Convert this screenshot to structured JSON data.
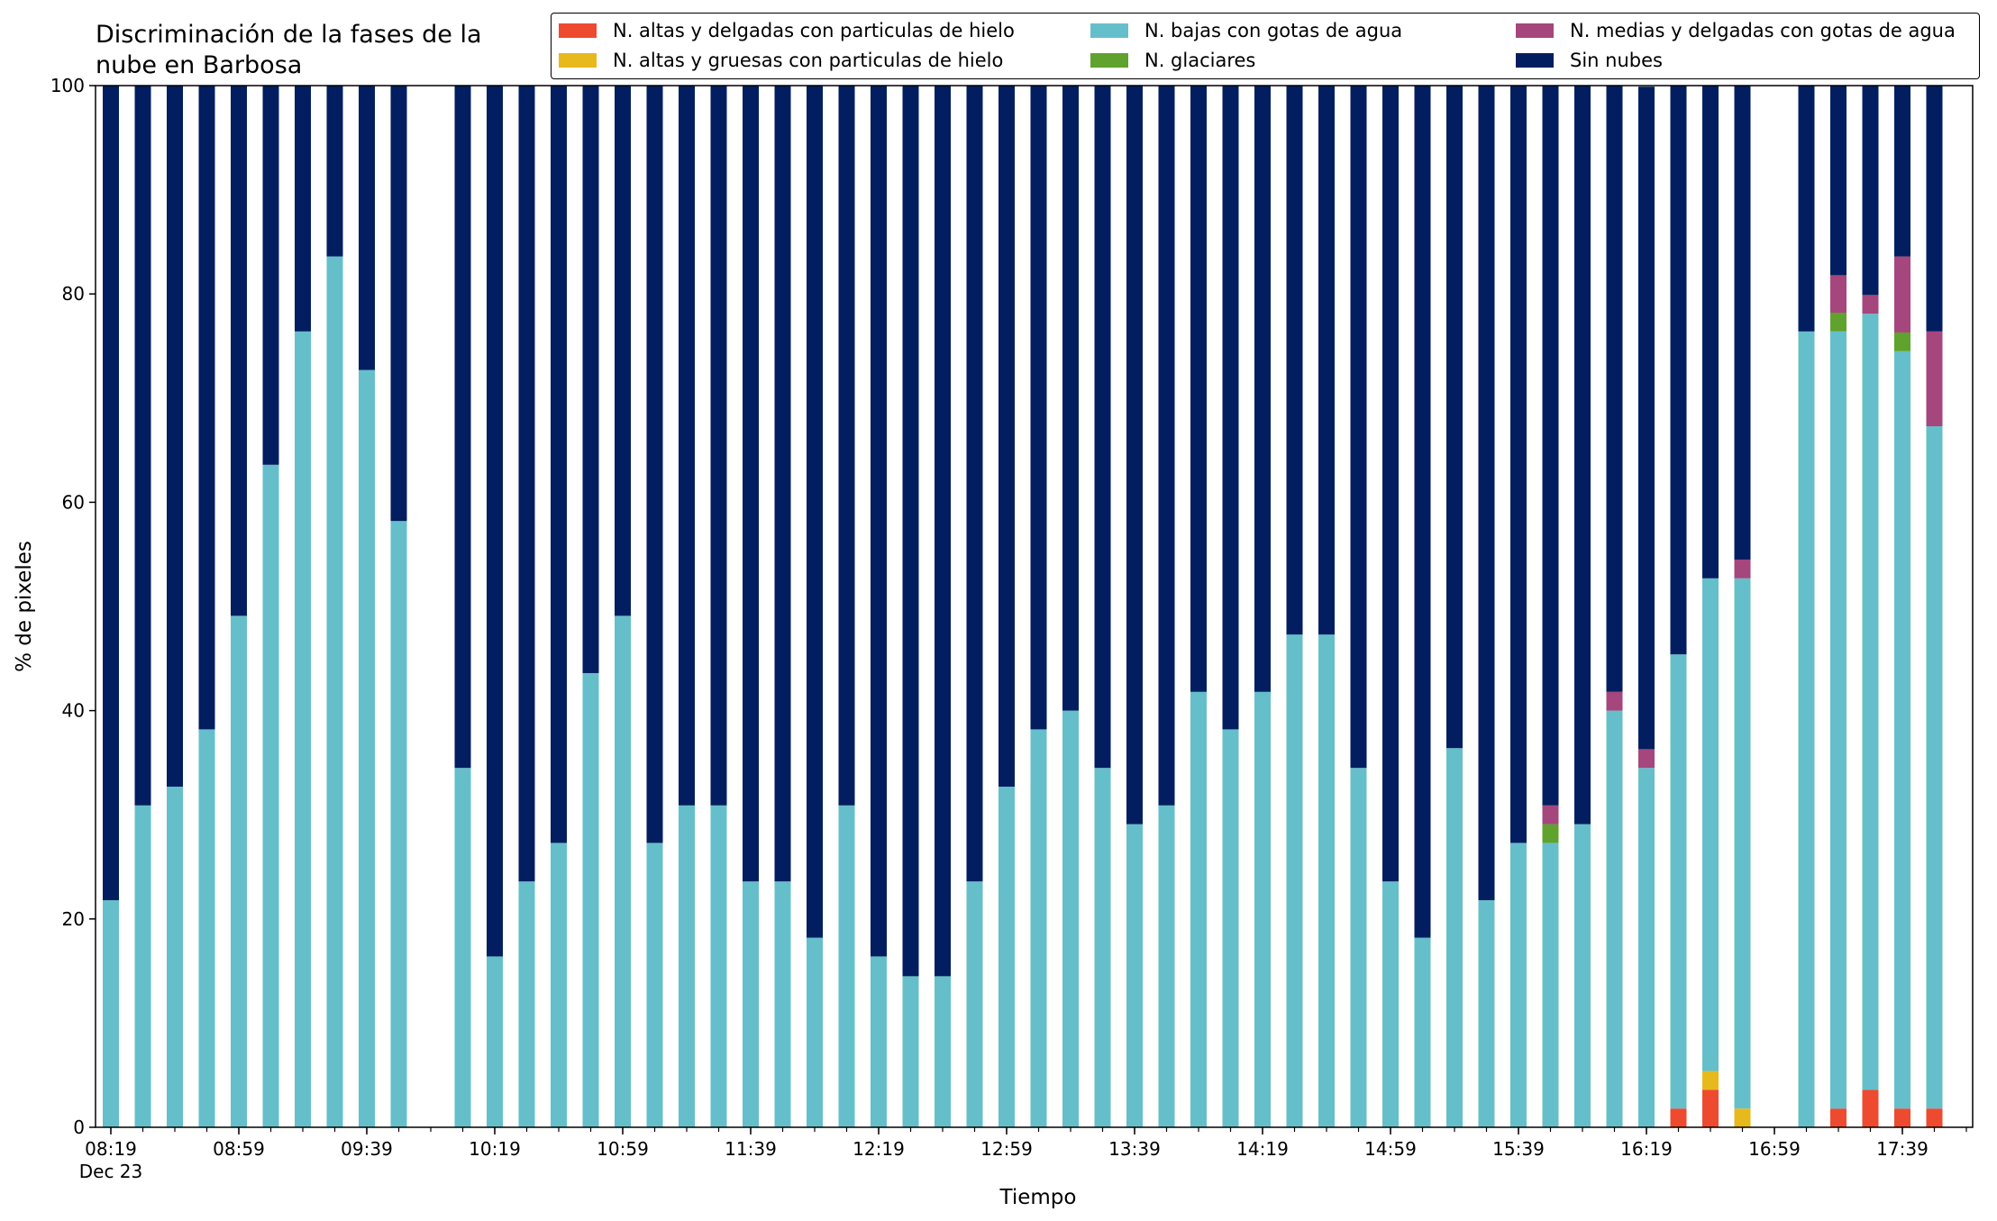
{
  "chart_data": {
    "type": "bar",
    "stacked": true,
    "title": "Discriminación de la fases de la\nnube en Barbosa",
    "xlabel": "Tiempo",
    "ylabel": "% de pixeles",
    "ylim": [
      0,
      100
    ],
    "yticks": [
      0,
      20,
      40,
      60,
      80,
      100
    ],
    "date_label": "Dec 23",
    "x_start": "08:19",
    "x_step_minutes": 10,
    "x_end": "17:59",
    "xtick_labels": [
      "08:19",
      "08:59",
      "09:39",
      "10:19",
      "10:59",
      "11:39",
      "12:19",
      "12:59",
      "13:39",
      "14:19",
      "14:59",
      "15:39",
      "16:19",
      "16:59",
      "17:39"
    ],
    "legend_position": "top-right",
    "grid": false,
    "x": [
      "08:19",
      "08:29",
      "08:39",
      "08:49",
      "08:59",
      "09:09",
      "09:19",
      "09:29",
      "09:39",
      "09:49",
      "09:59",
      "10:09",
      "10:19",
      "10:29",
      "10:39",
      "10:49",
      "10:59",
      "11:09",
      "11:19",
      "11:29",
      "11:39",
      "11:49",
      "11:59",
      "12:09",
      "12:19",
      "12:29",
      "12:39",
      "12:49",
      "12:59",
      "13:09",
      "13:19",
      "13:29",
      "13:39",
      "13:49",
      "13:59",
      "14:09",
      "14:19",
      "14:29",
      "14:39",
      "14:49",
      "14:59",
      "15:09",
      "15:19",
      "15:29",
      "15:39",
      "15:49",
      "15:59",
      "16:09",
      "16:19",
      "16:29",
      "16:39",
      "16:49",
      "16:59",
      "17:09",
      "17:19",
      "17:29",
      "17:39",
      "17:49"
    ],
    "series": [
      {
        "name": "N. altas y delgadas con particulas de hielo",
        "color": "#ee4a2f",
        "values": [
          0,
          0,
          0,
          0,
          0,
          0,
          0,
          0,
          0,
          0,
          null,
          0,
          0,
          0,
          0,
          0,
          0,
          0,
          0,
          0,
          0,
          0,
          0,
          0,
          0,
          0,
          0,
          0,
          0,
          0,
          0,
          0,
          0,
          0,
          0,
          0,
          0,
          0,
          0,
          0,
          0,
          0,
          0,
          0,
          0,
          0,
          0,
          0,
          0,
          1.8,
          3.6,
          0,
          null,
          0,
          1.8,
          3.6,
          1.8,
          1.8
        ]
      },
      {
        "name": "N. altas y gruesas con particulas de hielo",
        "color": "#e8b91c",
        "values": [
          0,
          0,
          0,
          0,
          0,
          0,
          0,
          0,
          0,
          0,
          null,
          0,
          0,
          0,
          0,
          0,
          0,
          0,
          0,
          0,
          0,
          0,
          0,
          0,
          0,
          0,
          0,
          0,
          0,
          0,
          0,
          0,
          0,
          0,
          0,
          0,
          0,
          0,
          0,
          0,
          0,
          0,
          0,
          0,
          0,
          0,
          0,
          0,
          0,
          0,
          1.8,
          1.8,
          null,
          0,
          0,
          0,
          0,
          0
        ]
      },
      {
        "name": "N. bajas con gotas de agua",
        "color": "#65bfca",
        "values": [
          21.8,
          30.9,
          32.7,
          38.2,
          49.1,
          63.6,
          76.4,
          83.6,
          72.7,
          58.2,
          null,
          34.5,
          16.4,
          23.6,
          27.3,
          43.6,
          49.1,
          27.3,
          30.9,
          30.9,
          23.6,
          23.6,
          18.2,
          30.9,
          16.4,
          14.5,
          14.5,
          23.6,
          32.7,
          38.2,
          40.0,
          34.5,
          29.1,
          30.9,
          41.8,
          38.2,
          41.8,
          47.3,
          47.3,
          34.5,
          23.6,
          18.2,
          36.4,
          21.8,
          27.3,
          27.3,
          29.1,
          40.0,
          34.5,
          43.6,
          47.3,
          50.9,
          null,
          76.4,
          74.6,
          74.5,
          72.7,
          65.5
        ]
      },
      {
        "name": "N. glaciares",
        "color": "#5fa22e",
        "values": [
          0,
          0,
          0,
          0,
          0,
          0,
          0,
          0,
          0,
          0,
          null,
          0,
          0,
          0,
          0,
          0,
          0,
          0,
          0,
          0,
          0,
          0,
          0,
          0,
          0,
          0,
          0,
          0,
          0,
          0,
          0,
          0,
          0,
          0,
          0,
          0,
          0,
          0,
          0,
          0,
          0,
          0,
          0,
          0,
          0,
          1.8,
          0,
          0,
          0,
          0,
          0,
          0,
          null,
          0,
          1.8,
          0,
          1.8,
          0
        ]
      },
      {
        "name": "N. medias y delgadas con gotas de agua",
        "color": "#a5467c",
        "values": [
          0,
          0,
          0,
          0,
          0,
          0,
          0,
          0,
          0,
          0,
          null,
          0,
          0,
          0,
          0,
          0,
          0,
          0,
          0,
          0,
          0,
          0,
          0,
          0,
          0,
          0,
          0,
          0,
          0,
          0,
          0,
          0,
          0,
          0,
          0,
          0,
          0,
          0,
          0,
          0,
          0,
          0,
          0,
          0,
          0,
          1.8,
          0,
          1.8,
          1.8,
          0,
          0,
          1.8,
          null,
          0,
          3.6,
          1.8,
          7.3,
          9.1
        ]
      },
      {
        "name": "Sin nubes",
        "color": "#021e60",
        "values": [
          78.2,
          69.1,
          67.3,
          61.8,
          50.9,
          36.4,
          23.6,
          16.4,
          27.3,
          41.8,
          null,
          65.5,
          83.6,
          76.4,
          72.7,
          56.4,
          50.9,
          72.7,
          69.1,
          69.1,
          76.4,
          76.4,
          81.8,
          69.1,
          83.6,
          85.5,
          85.5,
          76.4,
          67.3,
          61.8,
          60.0,
          65.5,
          70.9,
          69.1,
          58.2,
          61.8,
          58.2,
          52.7,
          52.7,
          65.5,
          76.4,
          81.8,
          63.6,
          78.2,
          72.7,
          69.1,
          70.9,
          58.2,
          63.6,
          54.6,
          47.3,
          45.5,
          null,
          23.6,
          18.2,
          20.1,
          16.4,
          23.6
        ]
      }
    ]
  }
}
